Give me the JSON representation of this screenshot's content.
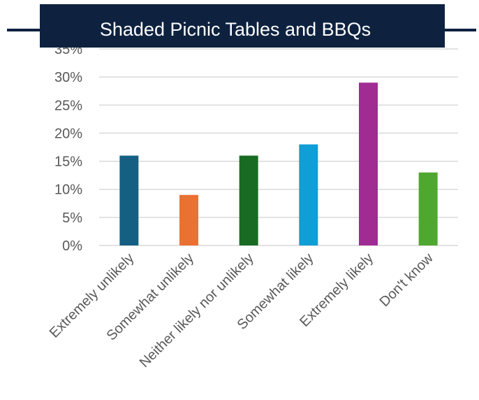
{
  "chart_data": {
    "type": "bar",
    "title": "Shaded Picnic Tables and BBQs",
    "xlabel": "",
    "ylabel": "",
    "categories": [
      "Extremely unlikely",
      "Somewhat unlikely",
      "Neither likely nor unlikely",
      "Somewhat likely",
      "Extremely likely",
      "Don't know"
    ],
    "values": [
      16,
      9,
      16,
      18,
      29,
      13
    ],
    "colors": [
      "#156082",
      "#e97132",
      "#196b24",
      "#0f9ed5",
      "#a02b93",
      "#4ea72e"
    ],
    "yticks": [
      "0%",
      "5%",
      "10%",
      "15%",
      "20%",
      "25%",
      "30%",
      "35%"
    ],
    "ylim": [
      0,
      35
    ],
    "grid": true,
    "legend": "none",
    "title_background": "#0e2240"
  }
}
